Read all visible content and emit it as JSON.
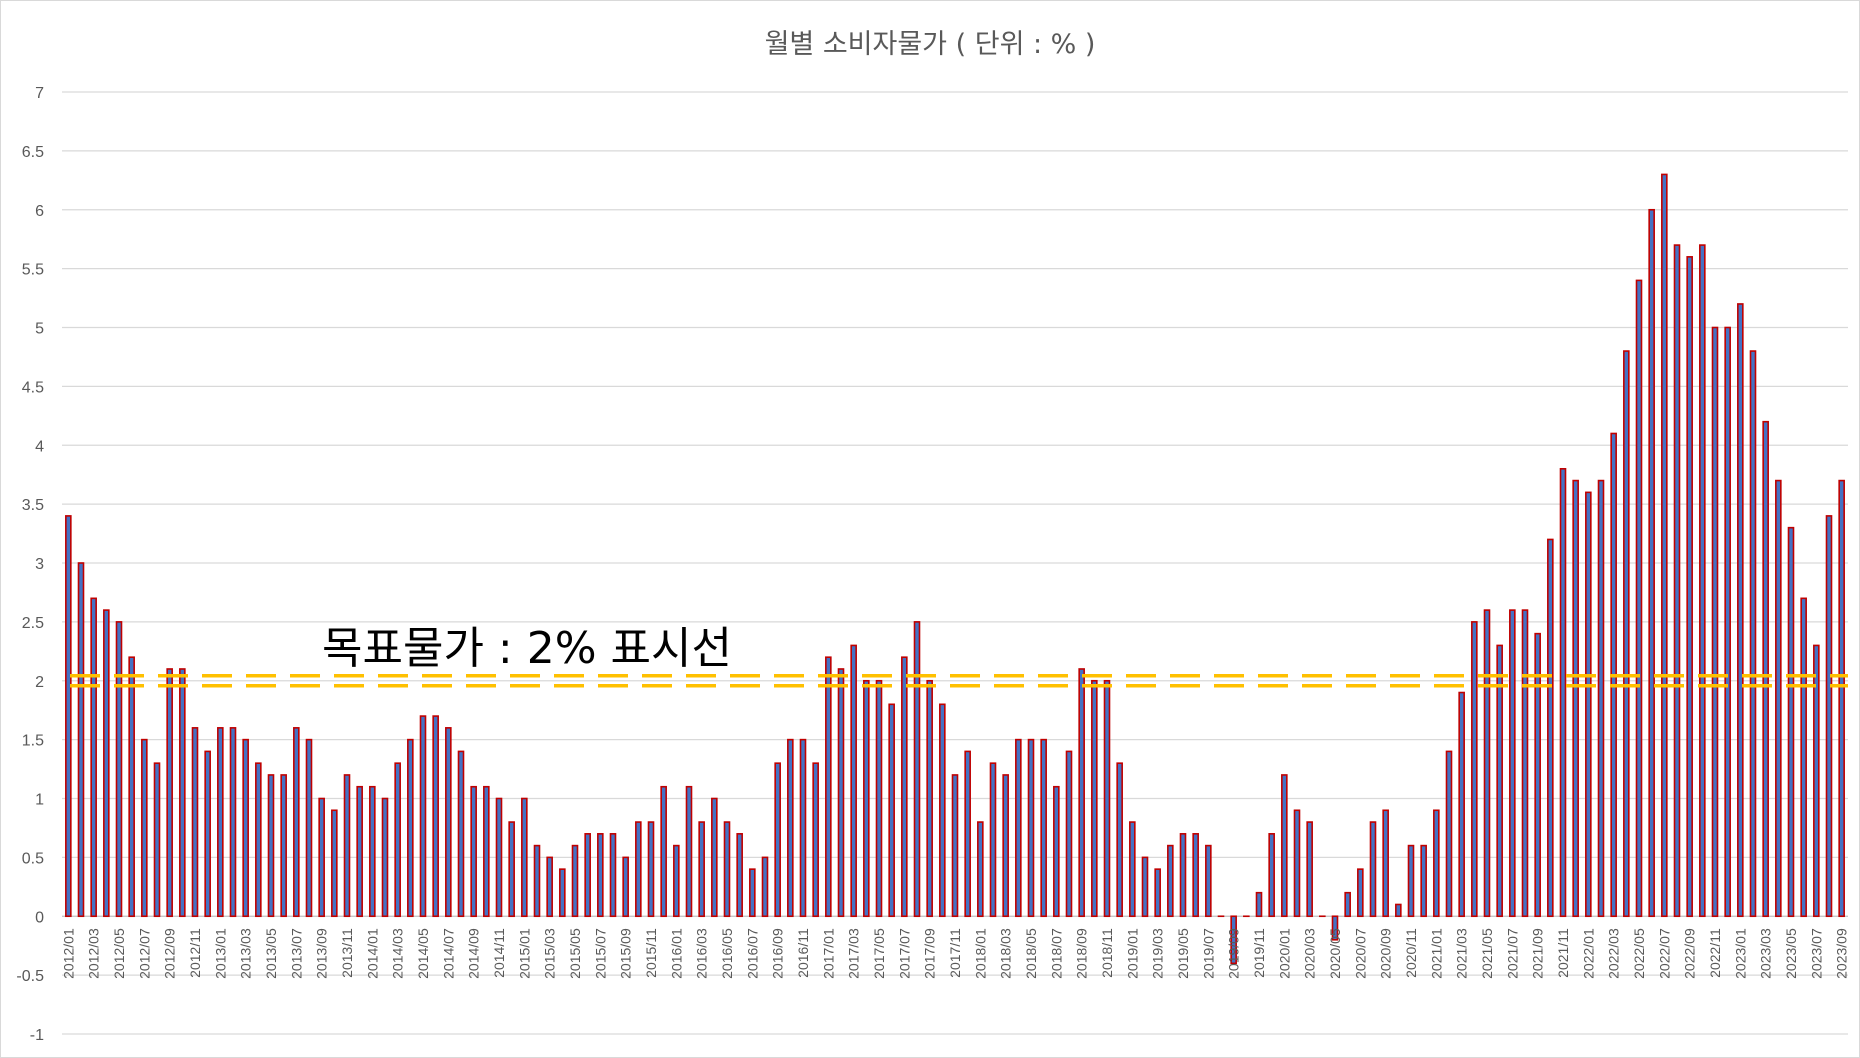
{
  "chart_data": {
    "type": "bar",
    "title": "월별 소비자물가 ( 단위 : % )",
    "xlabel": "",
    "ylabel": "",
    "ylim": [
      -1,
      7
    ],
    "yticks": [
      -1,
      -0.5,
      0,
      0.5,
      1,
      1.5,
      2,
      2.5,
      3,
      3.5,
      4,
      4.5,
      5,
      5.5,
      6,
      6.5,
      7
    ],
    "grid": true,
    "start_year": 2012,
    "start_month": 1,
    "tick_label_every": 2,
    "series": [
      {
        "name": "월별 소비자물가",
        "color": "#c00000",
        "inner_color": "#4472c4",
        "values": [
          3.4,
          3.0,
          2.7,
          2.6,
          2.5,
          2.2,
          1.5,
          1.3,
          2.1,
          2.1,
          1.6,
          1.4,
          1.6,
          1.6,
          1.5,
          1.3,
          1.2,
          1.2,
          1.6,
          1.5,
          1.0,
          0.9,
          1.2,
          1.1,
          1.1,
          1.0,
          1.3,
          1.5,
          1.7,
          1.7,
          1.6,
          1.4,
          1.1,
          1.1,
          1.0,
          0.8,
          1.0,
          0.6,
          0.5,
          0.4,
          0.6,
          0.7,
          0.7,
          0.7,
          0.5,
          0.8,
          0.8,
          1.1,
          0.6,
          1.1,
          0.8,
          1.0,
          0.8,
          0.7,
          0.4,
          0.5,
          1.3,
          1.5,
          1.5,
          1.3,
          2.2,
          2.1,
          2.3,
          2.0,
          2.0,
          1.8,
          2.2,
          2.5,
          2.0,
          1.8,
          1.2,
          1.4,
          0.8,
          1.3,
          1.2,
          1.5,
          1.5,
          1.5,
          1.1,
          1.4,
          2.1,
          2.0,
          2.0,
          1.3,
          0.8,
          0.5,
          0.4,
          0.6,
          0.7,
          0.7,
          0.6,
          0.0,
          -0.4,
          0.0,
          0.2,
          0.7,
          1.2,
          0.9,
          0.8,
          0.0,
          -0.2,
          0.2,
          0.4,
          0.8,
          0.9,
          0.1,
          0.6,
          0.6,
          0.9,
          1.4,
          1.9,
          2.5,
          2.6,
          2.3,
          2.6,
          2.6,
          2.4,
          3.2,
          3.8,
          3.7,
          3.6,
          3.7,
          4.1,
          4.8,
          5.4,
          6.0,
          6.3,
          5.7,
          5.6,
          5.7,
          5.0,
          5.0,
          5.2,
          4.8,
          4.2,
          3.7,
          3.3,
          2.7,
          2.3,
          3.4,
          3.7
        ]
      }
    ],
    "target_line": {
      "value": 2,
      "label": "목표물가 : 2% 표시선",
      "color": "#ffc000"
    }
  }
}
